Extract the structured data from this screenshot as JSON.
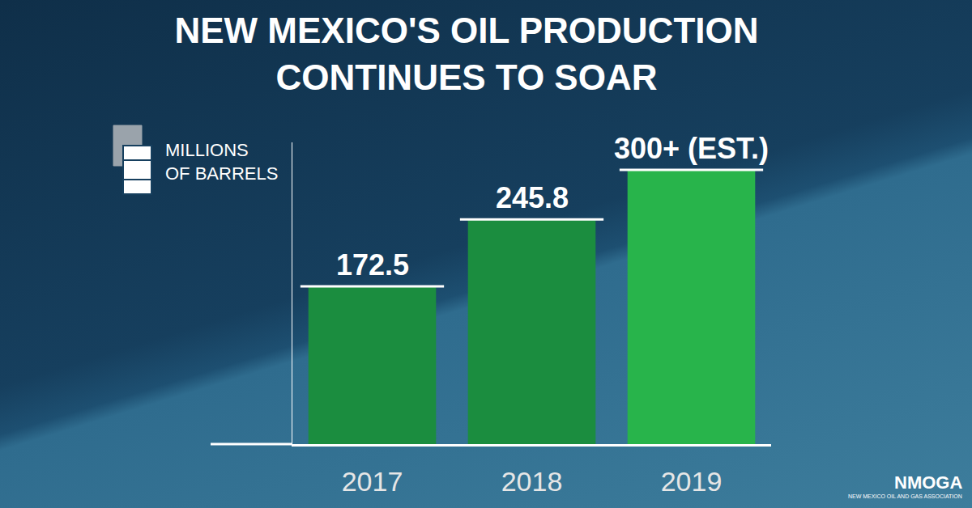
{
  "chart_data": {
    "type": "bar",
    "title": "NEW MEXICO'S OIL PRODUCTION CONTINUES TO SOAR",
    "ylabel": "MILLIONS OF BARRELS",
    "categories": [
      "2017",
      "2018",
      "2019"
    ],
    "values": [
      172.5,
      245.8,
      300
    ],
    "value_labels": [
      "172.5",
      "245.8",
      "300+ (EST.)"
    ],
    "colors": [
      "#1b8d3f",
      "#1b8d3f",
      "#28b44b"
    ],
    "ylim": [
      0,
      330
    ],
    "yticks": [],
    "grid": false,
    "data_labels": true,
    "tick_labels": "x",
    "logo": {
      "text": "NMOGA",
      "subtitle": "NEW MEXICO OIL AND GAS ASSOCIATION"
    }
  }
}
